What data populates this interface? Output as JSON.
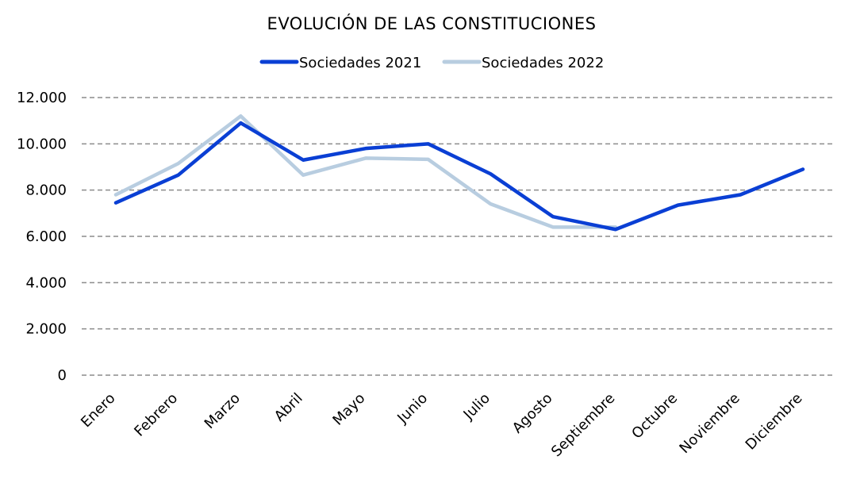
{
  "chart_data": {
    "type": "line",
    "title": "EVOLUCIÓN DE LAS CONSTITUCIONES",
    "categories": [
      "Enero",
      "Febrero",
      "Marzo",
      "Abril",
      "Mayo",
      "Junio",
      "Julio",
      "Agosto",
      "Septiembre",
      "Octubre",
      "Noviembre",
      "Diciembre"
    ],
    "series": [
      {
        "name": "Sociedades 2021",
        "color": "#0a3fd4",
        "values": [
          7450,
          8650,
          10900,
          9300,
          9800,
          10000,
          8700,
          6850,
          6300,
          7350,
          7800,
          8900
        ]
      },
      {
        "name": "Sociedades 2022",
        "color": "#b8cde0",
        "values": [
          7800,
          9150,
          11200,
          8650,
          9380,
          9330,
          7400,
          6400,
          6400,
          null,
          null,
          null
        ]
      }
    ],
    "y_ticks": [
      "12.000",
      "10.000",
      "8.000",
      "6.000",
      "4.000",
      "2.000",
      "0"
    ],
    "ylim": [
      0,
      12000
    ],
    "ystep": 2000,
    "grid": true,
    "legend_position": "top-center"
  }
}
